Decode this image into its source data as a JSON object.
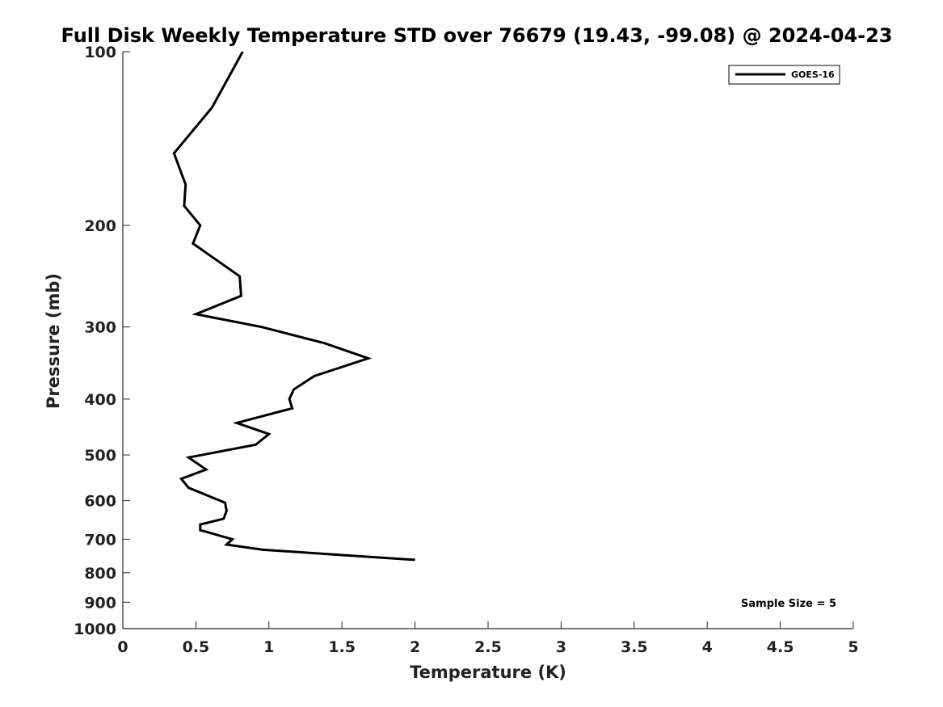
{
  "chart_data": {
    "type": "line",
    "title": "Full Disk Weekly Temperature STD over 76679 (19.43, -99.08) @ 2024-04-23",
    "xlabel": "Temperature (K)",
    "ylabel": "Pressure (mb)",
    "xlim": [
      0,
      5
    ],
    "ylim": [
      100,
      1000
    ],
    "y_scale": "log",
    "y_reversed": true,
    "x_ticks": [
      0,
      0.5,
      1,
      1.5,
      2,
      2.5,
      3,
      3.5,
      4,
      4.5,
      5
    ],
    "x_tick_labels": [
      "0",
      "0.5",
      "1",
      "1.5",
      "2",
      "2.5",
      "3",
      "3.5",
      "4",
      "4.5",
      "5"
    ],
    "y_ticks": [
      100,
      200,
      300,
      400,
      500,
      600,
      700,
      800,
      900,
      1000
    ],
    "y_tick_labels": [
      "100",
      "200",
      "300",
      "400",
      "500",
      "600",
      "700",
      "800",
      "900",
      "1000"
    ],
    "grid": false,
    "legend_position": "top-right",
    "series": [
      {
        "name": "GOES-16",
        "color": "#000000",
        "x": [
          0.82,
          0.61,
          0.35,
          0.43,
          0.42,
          0.53,
          0.48,
          0.8,
          0.81,
          0.5,
          0.95,
          1.38,
          1.68,
          1.31,
          1.17,
          1.14,
          1.16,
          0.78,
          1.0,
          0.91,
          0.45,
          0.57,
          0.4,
          0.45,
          0.7,
          0.71,
          0.69,
          0.53,
          0.53,
          0.75,
          0.71,
          0.96,
          2.0
        ],
        "y": [
          100,
          125,
          150,
          170,
          185,
          200,
          215,
          245,
          265,
          285,
          300,
          320,
          340,
          365,
          385,
          400,
          415,
          440,
          460,
          480,
          505,
          530,
          550,
          570,
          605,
          625,
          645,
          660,
          675,
          700,
          715,
          730,
          760
        ]
      }
    ],
    "annotations": [
      {
        "text": "Sample Size = 5",
        "position": "bottom-right"
      }
    ]
  }
}
